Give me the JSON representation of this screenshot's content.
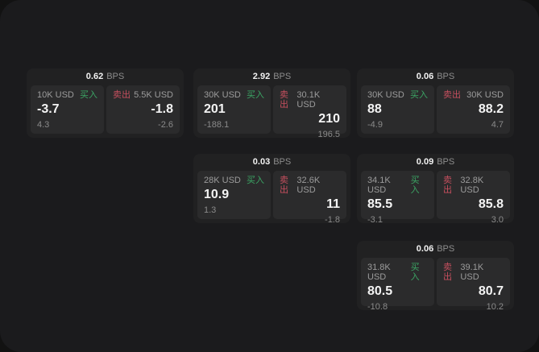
{
  "labels": {
    "bps_unit": "BPS",
    "buy": "买入",
    "sell": "卖出"
  },
  "colors": {
    "buy": "#3ba564",
    "sell": "#c64f5e",
    "surface": "#1b1b1d",
    "card": "#212122",
    "panel": "#2b2b2c"
  },
  "cards": [
    {
      "bps_value": "0.62",
      "buy": {
        "size": "10K USD",
        "price": "-3.7",
        "delta": "4.3"
      },
      "sell": {
        "size": "5.5K USD",
        "price": "-1.8",
        "delta": "-2.6"
      }
    },
    {
      "bps_value": "2.92",
      "buy": {
        "size": "30K USD",
        "price": "201",
        "delta": "-188.1"
      },
      "sell": {
        "size": "30.1K USD",
        "price": "210",
        "delta": "196.5"
      }
    },
    {
      "bps_value": "0.06",
      "buy": {
        "size": "30K USD",
        "price": "88",
        "delta": "-4.9"
      },
      "sell": {
        "size": "30K USD",
        "price": "88.2",
        "delta": "4.7"
      }
    },
    {
      "bps_value": "0.03",
      "buy": {
        "size": "28K USD",
        "price": "10.9",
        "delta": "1.3"
      },
      "sell": {
        "size": "32.6K USD",
        "price": "11",
        "delta": "-1.8"
      }
    },
    {
      "bps_value": "0.09",
      "buy": {
        "size": "34.1K USD",
        "price": "85.5",
        "delta": "-3.1"
      },
      "sell": {
        "size": "32.8K USD",
        "price": "85.8",
        "delta": "3.0"
      }
    },
    {
      "bps_value": "0.06",
      "buy": {
        "size": "31.8K USD",
        "price": "80.5",
        "delta": "-10.8"
      },
      "sell": {
        "size": "39.1K USD",
        "price": "80.7",
        "delta": "10.2"
      }
    }
  ]
}
